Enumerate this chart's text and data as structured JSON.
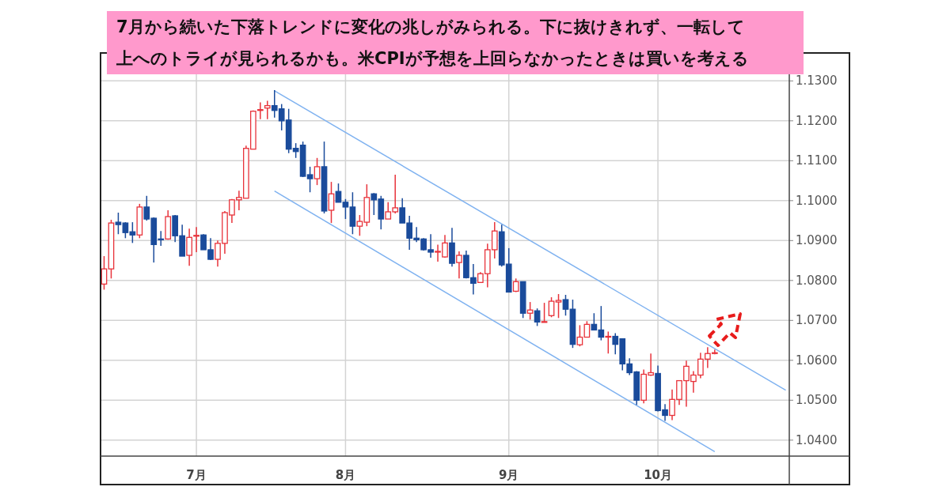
{
  "chart_data": {
    "type": "candlestick",
    "title": "7月から続いた下落トレンドに変化の兆しがみられる。下に抜けきれず、一転して",
    "subtitle": "上へのトライが見られるかも。米CPIが予想を上回らなかったときは買いを考える",
    "categories": [
      null,
      null,
      null,
      null,
      null,
      null,
      null,
      null,
      null,
      null,
      null,
      null,
      null,
      "7月",
      null,
      null,
      null,
      null,
      null,
      null,
      null,
      null,
      null,
      null,
      null,
      null,
      null,
      null,
      null,
      null,
      null,
      null,
      null,
      null,
      "8月",
      null,
      null,
      null,
      null,
      null,
      null,
      null,
      null,
      null,
      null,
      null,
      null,
      null,
      null,
      null,
      null,
      null,
      null,
      null,
      null,
      null,
      null,
      "9月",
      null,
      null,
      null,
      null,
      null,
      null,
      null,
      null,
      null,
      null,
      null,
      null,
      null,
      null,
      null,
      null,
      null,
      null,
      null,
      null,
      "10月",
      null,
      null,
      null,
      null,
      null,
      null,
      null,
      null,
      null,
      null,
      null,
      null,
      null,
      null,
      null,
      null,
      null,
      null
    ],
    "ohlc": [
      [
        1.0791,
        1.0861,
        1.0777,
        1.0829
      ],
      [
        1.0829,
        1.0952,
        1.0805,
        1.0944
      ],
      [
        1.0946,
        1.097,
        1.0916,
        1.094
      ],
      [
        1.0944,
        1.0946,
        1.0906,
        1.092
      ],
      [
        1.0922,
        1.0946,
        1.0894,
        1.0914
      ],
      [
        1.0914,
        1.0992,
        1.0906,
        1.0984
      ],
      [
        1.0984,
        1.1012,
        1.095,
        1.0954
      ],
      [
        1.0956,
        1.0958,
        1.0845,
        1.089
      ],
      [
        1.0904,
        1.0924,
        1.0887,
        1.0902
      ],
      [
        1.0904,
        1.0976,
        1.0902,
        1.096
      ],
      [
        1.0962,
        1.0964,
        1.0896,
        1.0912
      ],
      [
        1.0912,
        1.094,
        1.0861,
        1.0861
      ],
      [
        1.0863,
        1.093,
        1.0837,
        1.0908
      ],
      [
        1.0911,
        1.0934,
        1.0871,
        1.0913
      ],
      [
        1.0914,
        1.0916,
        1.0877,
        1.0877
      ],
      [
        1.0877,
        1.0906,
        1.0851,
        1.0853
      ],
      [
        1.0853,
        1.09,
        1.0835,
        1.0893
      ],
      [
        1.0893,
        1.0974,
        1.0867,
        1.097
      ],
      [
        1.0964,
        1.1004,
        1.0944,
        1.1002
      ],
      [
        1.1002,
        1.1025,
        1.0976,
        1.1008
      ],
      [
        1.1006,
        1.1138,
        1.1006,
        1.1131
      ],
      [
        1.1129,
        1.1226,
        1.1129,
        1.1224
      ],
      [
        1.1226,
        1.1246,
        1.1204,
        1.1228
      ],
      [
        1.1232,
        1.125,
        1.1204,
        1.1238
      ],
      [
        1.1238,
        1.1277,
        1.1208,
        1.1226
      ],
      [
        1.123,
        1.1242,
        1.1176,
        1.12
      ],
      [
        1.1202,
        1.123,
        1.1119,
        1.1129
      ],
      [
        1.1131,
        1.1144,
        1.1107,
        1.1123
      ],
      [
        1.1139,
        1.1148,
        1.1059,
        1.1061
      ],
      [
        1.1065,
        1.1085,
        1.1021,
        1.1055
      ],
      [
        1.1055,
        1.1107,
        1.1039,
        1.1085
      ],
      [
        1.1085,
        1.1148,
        1.0968,
        1.0974
      ],
      [
        1.0976,
        1.1047,
        1.0944,
        1.1017
      ],
      [
        1.1023,
        1.1043,
        1.0996,
        1.0996
      ],
      [
        1.0996,
        1.1004,
        1.0954,
        1.0984
      ],
      [
        1.0984,
        1.1021,
        1.0916,
        1.0936
      ],
      [
        1.0936,
        1.0964,
        1.0912,
        1.0948
      ],
      [
        1.0946,
        1.1041,
        1.0936,
        1.1008
      ],
      [
        1.1017,
        1.1019,
        1.0964,
        1.1002
      ],
      [
        1.1004,
        1.1012,
        1.0928,
        1.0954
      ],
      [
        1.0954,
        1.0996,
        1.0954,
        1.0972
      ],
      [
        1.0972,
        1.1065,
        1.0968,
        1.0982
      ],
      [
        1.0982,
        1.1006,
        1.0944,
        1.0944
      ],
      [
        1.0944,
        1.0962,
        1.0877,
        1.0906
      ],
      [
        1.0906,
        1.0934,
        1.0896,
        1.0902
      ],
      [
        1.0904,
        1.0906,
        1.0875,
        1.0877
      ],
      [
        1.0877,
        1.0916,
        1.0857,
        1.0871
      ],
      [
        1.0871,
        1.089,
        1.0847,
        1.0873
      ],
      [
        1.0859,
        1.0914,
        1.0857,
        1.0894
      ],
      [
        1.0894,
        1.0932,
        1.0835,
        1.0843
      ],
      [
        1.0845,
        1.0873,
        1.0805,
        1.0863
      ],
      [
        1.0863,
        1.0875,
        1.0805,
        1.0807
      ],
      [
        1.0807,
        1.0841,
        1.0765,
        1.0793
      ],
      [
        1.0795,
        1.0821,
        1.0795,
        1.0817
      ],
      [
        1.0817,
        1.0892,
        1.0783,
        1.0877
      ],
      [
        1.0877,
        1.0946,
        1.0855,
        1.0924
      ],
      [
        1.0922,
        1.094,
        1.0835,
        1.0839
      ],
      [
        1.0841,
        1.0881,
        1.0771,
        1.0771
      ],
      [
        1.0773,
        1.0805,
        1.0771,
        1.0797
      ],
      [
        1.0797,
        1.0797,
        1.0706,
        1.0718
      ],
      [
        1.0718,
        1.0746,
        1.0702,
        1.0726
      ],
      [
        1.0724,
        1.073,
        1.0686,
        1.0696
      ],
      [
        1.0696,
        1.0744,
        1.0696,
        1.0697
      ],
      [
        1.0712,
        1.0758,
        1.0708,
        1.0748
      ],
      [
        1.0746,
        1.0766,
        1.0706,
        1.075
      ],
      [
        1.0752,
        1.0764,
        1.0712,
        1.0728
      ],
      [
        1.0728,
        1.0752,
        1.0631,
        1.064
      ],
      [
        1.0639,
        1.0688,
        1.0635,
        1.0658
      ],
      [
        1.0658,
        1.0698,
        1.0657,
        1.069
      ],
      [
        1.069,
        1.0718,
        1.0676,
        1.0676
      ],
      [
        1.0676,
        1.0736,
        1.065,
        1.0658
      ],
      [
        1.0659,
        1.0672,
        1.0617,
        1.066
      ],
      [
        1.066,
        1.0668,
        1.0615,
        1.064
      ],
      [
        1.0654,
        1.0654,
        1.0575,
        1.0591
      ],
      [
        1.0591,
        1.0605,
        1.0563,
        1.0569
      ],
      [
        1.0571,
        1.0573,
        1.0488,
        1.05
      ],
      [
        1.05,
        1.0577,
        1.0492,
        1.0565
      ],
      [
        1.0563,
        1.0617,
        1.0561,
        1.0569
      ],
      [
        1.0567,
        1.0587,
        1.0472,
        1.0474
      ],
      [
        1.0476,
        1.049,
        1.0448,
        1.0462
      ],
      [
        1.0462,
        1.0527,
        1.045,
        1.0502
      ],
      [
        1.0502,
        1.0549,
        1.0488,
        1.0549
      ],
      [
        1.0549,
        1.0599,
        1.0484,
        1.0585
      ],
      [
        1.0547,
        1.0573,
        1.0519,
        1.0563
      ],
      [
        1.0563,
        1.0619,
        1.0555,
        1.0603
      ],
      [
        1.0603,
        1.0633,
        1.0581,
        1.0617
      ],
      [
        1.0617,
        1.0627,
        1.0615,
        1.0619
      ],
      null,
      null,
      null,
      null,
      null,
      null,
      null,
      null,
      null,
      null
    ],
    "series": [
      {
        "type": "line",
        "color": "#7fb2f0",
        "values": [
          null,
          null,
          null,
          null,
          null,
          null,
          null,
          null,
          null,
          null,
          null,
          null,
          null,
          null,
          null,
          null,
          null,
          null,
          null,
          null,
          null,
          null,
          null,
          null,
          1.1275,
          null,
          null,
          null,
          null,
          null,
          null,
          null,
          null,
          null,
          null,
          null,
          null,
          null,
          null,
          null,
          null,
          null,
          null,
          null,
          null,
          null,
          null,
          null,
          null,
          null,
          null,
          null,
          null,
          null,
          null,
          null,
          null,
          null,
          null,
          null,
          null,
          null,
          null,
          null,
          null,
          null,
          null,
          null,
          null,
          null,
          null,
          null,
          null,
          null,
          null,
          null,
          null,
          null,
          null,
          null,
          null,
          null,
          null,
          null,
          null,
          null,
          null,
          null,
          null,
          null,
          null,
          null,
          null,
          null,
          null,
          null,
          1.0525
        ]
      },
      {
        "type": "line",
        "color": "#7fb2f0",
        "values": [
          null,
          null,
          null,
          null,
          null,
          null,
          null,
          null,
          null,
          null,
          null,
          null,
          null,
          null,
          null,
          null,
          null,
          null,
          null,
          null,
          null,
          null,
          null,
          null,
          1.1024,
          null,
          null,
          null,
          null,
          null,
          null,
          null,
          null,
          null,
          null,
          null,
          null,
          null,
          null,
          null,
          null,
          null,
          null,
          null,
          null,
          null,
          null,
          null,
          null,
          null,
          null,
          null,
          null,
          null,
          null,
          null,
          null,
          null,
          null,
          null,
          null,
          null,
          null,
          null,
          null,
          null,
          null,
          null,
          null,
          null,
          null,
          null,
          null,
          null,
          null,
          null,
          null,
          null,
          null,
          null,
          null,
          null,
          null,
          null,
          null,
          null,
          1.0371,
          null,
          null,
          null,
          null,
          null,
          null,
          null,
          null,
          null,
          null
        ]
      }
    ],
    "ylim": [
      1.036,
      1.137
    ],
    "yticks": [
      {
        "value": 1.04,
        "label": "1.0400"
      },
      {
        "value": 1.05,
        "label": "1.0500"
      },
      {
        "value": 1.06,
        "label": "1.0600"
      },
      {
        "value": 1.07,
        "label": "1.0700"
      },
      {
        "value": 1.08,
        "label": "1.0800"
      },
      {
        "value": 1.09,
        "label": "1.0900"
      },
      {
        "value": 1.1,
        "label": "1.1000"
      },
      {
        "value": 1.11,
        "label": "1.1100"
      },
      {
        "value": 1.12,
        "label": "1.1200"
      },
      {
        "value": 1.13,
        "label": "1.1300"
      }
    ],
    "grid": true
  }
}
